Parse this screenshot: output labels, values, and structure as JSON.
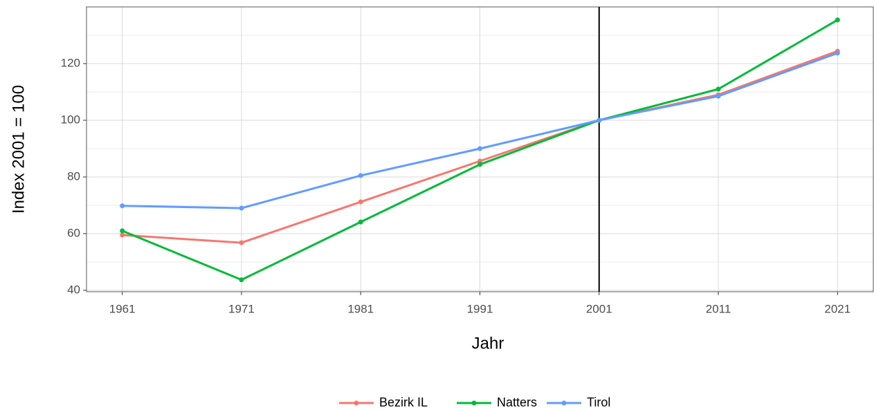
{
  "chart_data": {
    "type": "line",
    "x_label": "Jahr",
    "y_label": "Index 2001 = 100",
    "x": [
      1961,
      1971,
      1981,
      1991,
      2001,
      2011,
      2021
    ],
    "series": [
      {
        "name": "Bezirk IL",
        "color": "#F8766D",
        "values": [
          59.5,
          56.8,
          71.2,
          85.6,
          100,
          109,
          124.4
        ]
      },
      {
        "name": "Natters",
        "color": "#00BA38",
        "values": [
          61,
          43.7,
          64.1,
          84.4,
          100,
          111,
          135.4
        ]
      },
      {
        "name": "Tirol",
        "color": "#619CFF",
        "values": [
          69.8,
          69,
          80.5,
          90,
          100,
          108.5,
          123.7
        ]
      }
    ],
    "xlim": [
      1958,
      2024
    ],
    "xticks": [
      1961,
      1971,
      1981,
      1991,
      2001,
      2011,
      2021
    ],
    "ylim": [
      39.5,
      140
    ],
    "yticks": [
      40,
      60,
      80,
      100,
      120
    ],
    "yminor": [
      50,
      70,
      90,
      110,
      130
    ],
    "vline": 2001,
    "grid": true,
    "legend": "bottom"
  }
}
